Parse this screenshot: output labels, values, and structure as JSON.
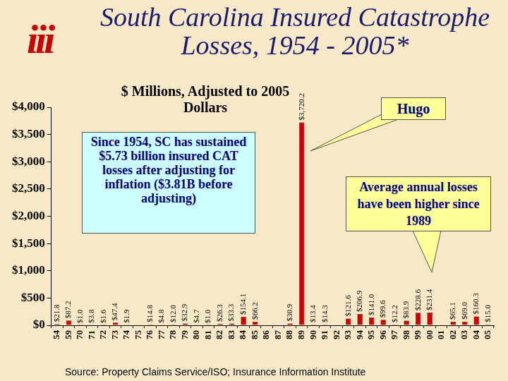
{
  "logo": "iii",
  "source": "Source: Property Claims Service/ISO; Insurance Information Institute",
  "chart_data": {
    "type": "bar",
    "title": "South Carolina Insured Catastrophe Losses, 1954 - 2005*",
    "subtitle": "$ Millions, Adjusted to 2005 Dollars",
    "annotations": [
      "Since 1954, SC has sustained $5.73 billion insured CAT losses after adjusting for inflation ($3.81B before adjusting)",
      "Hugo",
      "Average annual losses have been higher since 1989"
    ],
    "categories": [
      "54",
      "59",
      "70",
      "71",
      "72",
      "73",
      "74",
      "75",
      "76",
      "77",
      "78",
      "79",
      "80",
      "81",
      "82",
      "83",
      "84",
      "85",
      "86",
      "87",
      "88",
      "89",
      "90",
      "91",
      "92",
      "93",
      "94",
      "95",
      "96",
      "97",
      "98",
      "99",
      "00",
      "01",
      "02",
      "03",
      "04",
      "05"
    ],
    "values": [
      21.8,
      87.2,
      1.0,
      3.8,
      1.6,
      47.4,
      1.9,
      null,
      14.8,
      4.8,
      12.0,
      32.9,
      4.7,
      1.0,
      26.3,
      33.3,
      154.1,
      66.2,
      null,
      null,
      30.9,
      3720.2,
      13.4,
      14.3,
      null,
      121.6,
      206.9,
      141.0,
      99.6,
      12.2,
      83.9,
      228.6,
      231.4,
      null,
      65.1,
      69.0,
      160.3,
      15.0
    ],
    "value_labels": [
      "$21.8",
      "$87.2",
      "$1.0",
      "$3.8",
      "$1.6",
      "$47.4",
      "$1.9",
      null,
      "$14.8",
      "$4.8",
      "$12.0",
      "$32.9",
      "$4.7",
      "$1.0",
      "$26.3",
      "$33.3",
      "$154.1",
      "$66.2",
      null,
      null,
      "$30.9",
      "$3,720.2",
      "$13.4",
      "$14.3",
      null,
      "$121.6",
      "$206.9",
      "$141.0",
      "$99.6",
      "$12.2",
      "$83.9",
      "$228.6",
      "$231.4",
      null,
      "$65.1",
      "$69.0",
      "$160.3",
      "$15.0"
    ],
    "data_labels": true,
    "color": "#d40000",
    "ylim": [
      0,
      4000
    ],
    "yticks": [
      {
        "value": 0,
        "label": "$0"
      },
      {
        "value": 500,
        "label": "$500"
      },
      {
        "value": 1000,
        "label": "$1,000"
      },
      {
        "value": 1500,
        "label": "$1,500"
      },
      {
        "value": 2000,
        "label": "$2,000"
      },
      {
        "value": 2500,
        "label": "$2,500"
      },
      {
        "value": 3000,
        "label": "$3,000"
      },
      {
        "value": 3500,
        "label": "$3,500"
      },
      {
        "value": 4000,
        "label": "$4,000"
      }
    ],
    "grid": false
  }
}
